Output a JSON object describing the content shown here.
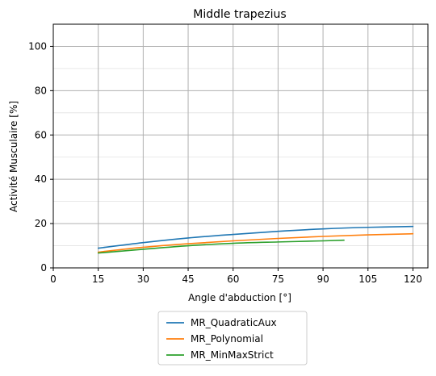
{
  "chart_data": {
    "type": "line",
    "title": "Middle trapezius",
    "xlabel": "Angle d'abduction [°]",
    "ylabel": "Activité Musculaire [%]",
    "xlim": [
      0,
      125
    ],
    "ylim": [
      0,
      110
    ],
    "x_ticks": [
      "0",
      "15",
      "30",
      "45",
      "60",
      "75",
      "90",
      "105",
      "120"
    ],
    "y_ticks": [
      "0",
      "20",
      "40",
      "60",
      "80",
      "100"
    ],
    "grid": true,
    "legend_position": "below",
    "series": [
      {
        "name": "MR_QuadraticAux",
        "color": "#1f77b4",
        "points": [
          [
            15,
            8.9
          ],
          [
            30,
            11.4
          ],
          [
            45,
            13.5
          ],
          [
            60,
            15.1
          ],
          [
            75,
            16.5
          ],
          [
            90,
            17.6
          ],
          [
            105,
            18.3
          ],
          [
            120,
            18.7
          ]
        ]
      },
      {
        "name": "MR_Polynomial",
        "color": "#ff7f0e",
        "points": [
          [
            15,
            7.1
          ],
          [
            30,
            9.3
          ],
          [
            45,
            10.9
          ],
          [
            60,
            12.2
          ],
          [
            75,
            13.3
          ],
          [
            90,
            14.2
          ],
          [
            105,
            14.9
          ],
          [
            120,
            15.4
          ]
        ]
      },
      {
        "name": "MR_MinMaxStrict",
        "color": "#2ca02c",
        "points": [
          [
            15,
            6.7
          ],
          [
            30,
            8.4
          ],
          [
            45,
            10.0
          ],
          [
            60,
            11.1
          ],
          [
            75,
            11.7
          ],
          [
            90,
            12.2
          ],
          [
            97,
            12.5
          ]
        ]
      }
    ]
  }
}
